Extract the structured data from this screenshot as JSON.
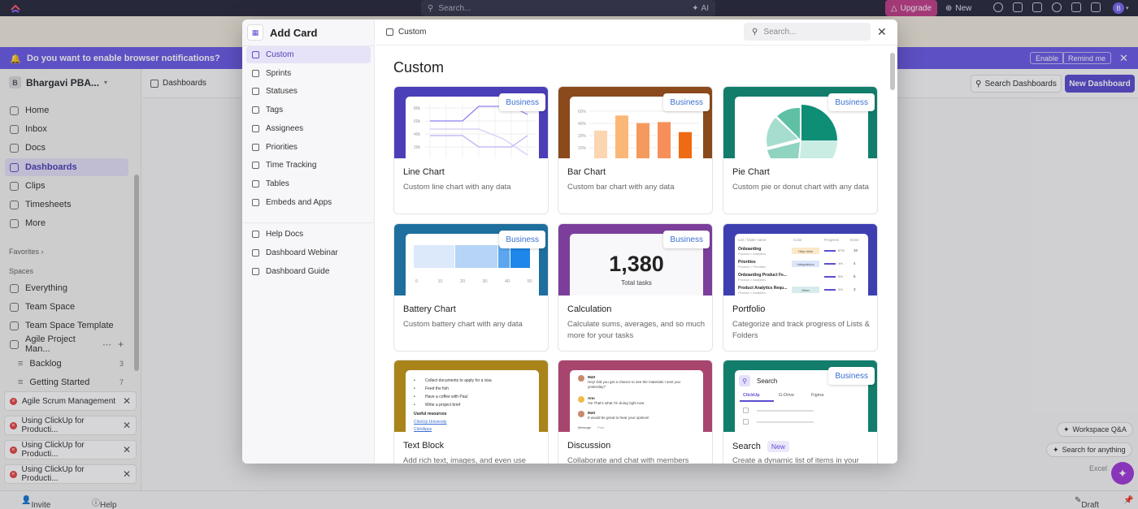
{
  "topbar": {
    "search_placeholder": "Search...",
    "ai_label": "AI",
    "upgrade_label": "Upgrade",
    "new_label": "New",
    "avatar_initial": "B"
  },
  "notification": {
    "message": "Do you want to enable browser notifications?",
    "enable_label": "Enable",
    "remind_label": "Remind me"
  },
  "sidebar": {
    "workspace_initial": "B",
    "workspace_name": "Bhargavi PBA...",
    "nav": [
      {
        "label": "Home",
        "icon": "home-icon"
      },
      {
        "label": "Inbox",
        "icon": "inbox-icon"
      },
      {
        "label": "Docs",
        "icon": "docs-icon"
      },
      {
        "label": "Dashboards",
        "icon": "dashboards-icon"
      },
      {
        "label": "Clips",
        "icon": "clips-icon"
      },
      {
        "label": "Timesheets",
        "icon": "timesheets-icon"
      },
      {
        "label": "More",
        "icon": "more-icon"
      }
    ],
    "favorites_label": "Favorites",
    "spaces_label": "Spaces",
    "spaces": [
      {
        "label": "Everything"
      },
      {
        "label": "Team Space"
      },
      {
        "label": "Team Space Template"
      },
      {
        "label": "Agile Project Man..."
      }
    ],
    "lists": [
      {
        "label": "Backlog",
        "count": "3"
      },
      {
        "label": "Getting Started",
        "count": "7"
      }
    ],
    "tabs": [
      {
        "label": "Agile Scrum Management"
      },
      {
        "label": "Using ClickUp for Producti..."
      },
      {
        "label": "Using ClickUp for Producti..."
      },
      {
        "label": "Using ClickUp for Producti..."
      }
    ],
    "invite_label": "Invite",
    "help_label": "Help"
  },
  "main": {
    "breadcrumb": "Dashboards",
    "search_dashboards": "Search Dashboards",
    "new_dashboard": "New Dashboard",
    "workspace_qa": "Workspace Q&A",
    "search_anything": "Search for anything",
    "excel_label": "Excel",
    "draft_label": "Draft"
  },
  "modal": {
    "title": "Add Card",
    "breadcrumb": "Custom",
    "search_placeholder": "Search...",
    "heading": "Custom",
    "categories": [
      {
        "label": "Custom",
        "icon": "custom-icon"
      },
      {
        "label": "Sprints",
        "icon": "sprints-icon"
      },
      {
        "label": "Statuses",
        "icon": "statuses-icon"
      },
      {
        "label": "Tags",
        "icon": "tags-icon"
      },
      {
        "label": "Assignees",
        "icon": "assignees-icon"
      },
      {
        "label": "Priorities",
        "icon": "priorities-icon"
      },
      {
        "label": "Time Tracking",
        "icon": "time-tracking-icon"
      },
      {
        "label": "Tables",
        "icon": "tables-icon"
      },
      {
        "label": "Embeds and Apps",
        "icon": "embeds-icon"
      }
    ],
    "resources": [
      {
        "label": "Help Docs",
        "icon": "help-docs-icon"
      },
      {
        "label": "Dashboard Webinar",
        "icon": "webinar-icon"
      },
      {
        "label": "Dashboard Guide",
        "icon": "guide-icon"
      }
    ],
    "cards": [
      {
        "title": "Line Chart",
        "desc": "Custom line chart with any data",
        "badge": "Business",
        "color": "#4b3fb8"
      },
      {
        "title": "Bar Chart",
        "desc": "Custom bar chart with any data",
        "badge": "Business",
        "color": "#8a4a1c"
      },
      {
        "title": "Pie Chart",
        "desc": "Custom pie or donut chart with any data",
        "badge": "Business",
        "color": "#137d6c"
      },
      {
        "title": "Battery Chart",
        "desc": "Custom battery chart with any data",
        "badge": "Business",
        "color": "#1f6f9e"
      },
      {
        "title": "Calculation",
        "desc": "Calculate sums, averages, and so much more for your tasks",
        "badge": "Business",
        "color": "#7b3f9b"
      },
      {
        "title": "Portfolio",
        "desc": "Categorize and track progress of Lists & Folders",
        "badge": "",
        "color": "#3d3fb1"
      },
      {
        "title": "Text Block",
        "desc": "Add rich text, images, and even use",
        "badge": "",
        "color": "#a8841a"
      },
      {
        "title": "Discussion",
        "desc": "Collaborate and chat with members",
        "badge": "",
        "color": "#a8456e"
      },
      {
        "title": "Search",
        "desc": "Create a dynamic list of items in your",
        "badge": "Business",
        "new_tag": "New",
        "color": "#137d6c"
      }
    ],
    "line_thumb": {
      "ticks": [
        "80k",
        "60k",
        "40k",
        "20k"
      ]
    },
    "bar_thumb": {
      "ticks": [
        "60%",
        "40%",
        "20%",
        "10%"
      ],
      "values": [
        0.55,
        0.85,
        0.7,
        0.72,
        0.52
      ]
    },
    "battery_thumb": {
      "ticks": [
        "0",
        "10",
        "20",
        "30",
        "40",
        "50"
      ]
    },
    "calc_thumb": {
      "value": "1,380",
      "label": "Total tasks"
    },
    "portfolio_thumb": {
      "headers": [
        "List / folder name",
        "Color",
        "Progress",
        "Done"
      ],
      "rows": [
        {
          "name": "Onboarding",
          "sub": "Product > Analytics",
          "tag": "Help desk",
          "pct": "67%",
          "done": "10"
        },
        {
          "name": "Priorities",
          "sub": "Product > Priorities",
          "tag": "Integrations",
          "pct": "4%",
          "done": "4"
        },
        {
          "name": "Onboarding Product Fe...",
          "sub": "Product > Analytics",
          "tag": "",
          "pct": "5%",
          "done": "5"
        },
        {
          "name": "Product Analytics Requ...",
          "sub": "Product > Analytics",
          "tag": "Other",
          "pct": "3%",
          "done": "3"
        }
      ]
    },
    "text_thumb": {
      "items": [
        "Collect documents to apply for a visa",
        "Feed the fish",
        "Have a coffee with Paul",
        "Write a project brief"
      ],
      "resources_label": "Useful resources",
      "link1": "ClickUp University",
      "link2": "ClickApps"
    },
    "discussion_thumb": {
      "messages": [
        {
          "name": "Matt",
          "text": "Hey! Did you get a chance to see the materials I sent you yesterday?"
        },
        {
          "name": "Ann",
          "text": "Yo! That's what I'm doing right now"
        },
        {
          "name": "Matt",
          "text": "It would be great to hear your opinion!"
        }
      ],
      "tab1": "Message",
      "tab2": "Post"
    },
    "search_thumb": {
      "title": "Search",
      "tabs": [
        "ClickUp",
        "G-Drive",
        "Figma"
      ]
    }
  }
}
